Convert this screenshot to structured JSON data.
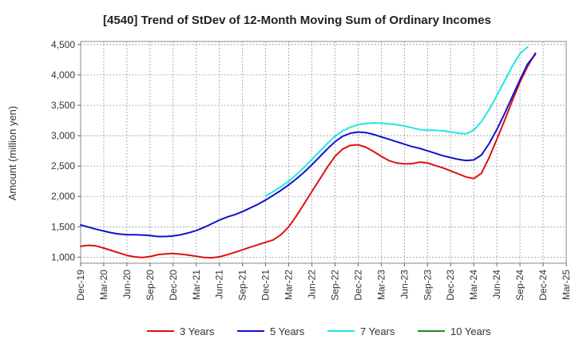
{
  "chart_data": {
    "type": "line",
    "title": "[4540]  Trend of StDev of 12-Month Moving Sum of Ordinary Incomes",
    "xlabel": "",
    "ylabel": "Amount (million yen)",
    "ylim": [
      900,
      4550
    ],
    "yticks": [
      1000,
      1500,
      2000,
      2500,
      3000,
      3500,
      4000,
      4500
    ],
    "ytick_labels": [
      "1,000",
      "1,500",
      "2,000",
      "2,500",
      "3,000",
      "3,500",
      "4,000",
      "4,500"
    ],
    "xlim": [
      "Dec-19",
      "Mar-25"
    ],
    "xtick_labels": [
      "Dec-19",
      "Mar-20",
      "Jun-20",
      "Sep-20",
      "Dec-20",
      "Mar-21",
      "Jun-21",
      "Sep-21",
      "Dec-21",
      "Mar-22",
      "Jun-22",
      "Sep-22",
      "Dec-22",
      "Mar-23",
      "Jun-23",
      "Sep-23",
      "Dec-23",
      "Mar-24",
      "Jun-24",
      "Sep-24",
      "Dec-24",
      "Mar-25"
    ],
    "grid": true,
    "legend_position": "bottom",
    "series": [
      {
        "name": "3 Years",
        "color": "#dd1111",
        "points": [
          [
            "Dec-19",
            1180
          ],
          [
            "Jan-20",
            1195
          ],
          [
            "Feb-20",
            1185
          ],
          [
            "Mar-20",
            1150
          ],
          [
            "Apr-20",
            1110
          ],
          [
            "May-20",
            1070
          ],
          [
            "Jun-20",
            1030
          ],
          [
            "Jul-20",
            1005
          ],
          [
            "Aug-20",
            995
          ],
          [
            "Sep-20",
            1010
          ],
          [
            "Oct-20",
            1040
          ],
          [
            "Nov-20",
            1055
          ],
          [
            "Dec-20",
            1060
          ],
          [
            "Jan-21",
            1050
          ],
          [
            "Feb-21",
            1035
          ],
          [
            "Mar-21",
            1015
          ],
          [
            "Apr-21",
            995
          ],
          [
            "May-21",
            990
          ],
          [
            "Jun-21",
            1005
          ],
          [
            "Jul-21",
            1040
          ],
          [
            "Aug-21",
            1080
          ],
          [
            "Sep-21",
            1120
          ],
          [
            "Oct-21",
            1165
          ],
          [
            "Nov-21",
            1205
          ],
          [
            "Dec-21",
            1245
          ],
          [
            "Jan-22",
            1285
          ],
          [
            "Feb-22",
            1370
          ],
          [
            "Mar-22",
            1500
          ],
          [
            "Apr-22",
            1680
          ],
          [
            "May-22",
            1880
          ],
          [
            "Jun-22",
            2080
          ],
          [
            "Jul-22",
            2280
          ],
          [
            "Aug-22",
            2480
          ],
          [
            "Sep-22",
            2660
          ],
          [
            "Oct-22",
            2780
          ],
          [
            "Nov-22",
            2840
          ],
          [
            "Dec-22",
            2850
          ],
          [
            "Jan-23",
            2810
          ],
          [
            "Feb-23",
            2740
          ],
          [
            "Mar-23",
            2660
          ],
          [
            "Apr-23",
            2590
          ],
          [
            "May-23",
            2550
          ],
          [
            "Jun-23",
            2535
          ],
          [
            "Jul-23",
            2540
          ],
          [
            "Aug-23",
            2565
          ],
          [
            "Sep-23",
            2550
          ],
          [
            "Oct-23",
            2510
          ],
          [
            "Nov-23",
            2470
          ],
          [
            "Dec-23",
            2420
          ],
          [
            "Jan-24",
            2370
          ],
          [
            "Feb-24",
            2320
          ],
          [
            "Mar-24",
            2295
          ],
          [
            "Apr-24",
            2380
          ],
          [
            "May-24",
            2640
          ],
          [
            "Jun-24",
            2940
          ],
          [
            "Jul-24",
            3250
          ],
          [
            "Aug-24",
            3570
          ],
          [
            "Sep-24",
            3880
          ],
          [
            "Oct-24",
            4140
          ],
          [
            "Nov-24",
            4360
          ]
        ]
      },
      {
        "name": "5 Years",
        "color": "#1111cc",
        "points": [
          [
            "Dec-19",
            1530
          ],
          [
            "Jan-20",
            1495
          ],
          [
            "Feb-20",
            1460
          ],
          [
            "Mar-20",
            1430
          ],
          [
            "Apr-20",
            1400
          ],
          [
            "May-20",
            1380
          ],
          [
            "Jun-20",
            1370
          ],
          [
            "Jul-20",
            1370
          ],
          [
            "Aug-20",
            1365
          ],
          [
            "Sep-20",
            1355
          ],
          [
            "Oct-20",
            1340
          ],
          [
            "Nov-20",
            1340
          ],
          [
            "Dec-20",
            1350
          ],
          [
            "Jan-21",
            1370
          ],
          [
            "Feb-21",
            1400
          ],
          [
            "Mar-21",
            1440
          ],
          [
            "Apr-21",
            1490
          ],
          [
            "May-21",
            1550
          ],
          [
            "Jun-21",
            1610
          ],
          [
            "Jul-21",
            1660
          ],
          [
            "Aug-21",
            1700
          ],
          [
            "Sep-21",
            1750
          ],
          [
            "Oct-21",
            1810
          ],
          [
            "Nov-21",
            1870
          ],
          [
            "Dec-21",
            1940
          ],
          [
            "Jan-22",
            2020
          ],
          [
            "Feb-22",
            2100
          ],
          [
            "Mar-22",
            2190
          ],
          [
            "Apr-22",
            2290
          ],
          [
            "May-22",
            2400
          ],
          [
            "Jun-22",
            2520
          ],
          [
            "Jul-22",
            2650
          ],
          [
            "Aug-22",
            2780
          ],
          [
            "Sep-22",
            2900
          ],
          [
            "Oct-22",
            2990
          ],
          [
            "Nov-22",
            3040
          ],
          [
            "Dec-22",
            3060
          ],
          [
            "Jan-23",
            3050
          ],
          [
            "Feb-23",
            3020
          ],
          [
            "Mar-23",
            2980
          ],
          [
            "Apr-23",
            2940
          ],
          [
            "May-23",
            2900
          ],
          [
            "Jun-23",
            2860
          ],
          [
            "Jul-23",
            2820
          ],
          [
            "Aug-23",
            2790
          ],
          [
            "Sep-23",
            2750
          ],
          [
            "Oct-23",
            2710
          ],
          [
            "Nov-23",
            2670
          ],
          [
            "Dec-23",
            2640
          ],
          [
            "Jan-24",
            2610
          ],
          [
            "Feb-24",
            2590
          ],
          [
            "Mar-24",
            2600
          ],
          [
            "Apr-24",
            2680
          ],
          [
            "May-24",
            2870
          ],
          [
            "Jun-24",
            3100
          ],
          [
            "Jul-24",
            3360
          ],
          [
            "Aug-24",
            3640
          ],
          [
            "Sep-24",
            3920
          ],
          [
            "Oct-24",
            4180
          ],
          [
            "Nov-24",
            4340
          ]
        ]
      },
      {
        "name": "7 Years",
        "color": "#22e6e6",
        "points": [
          [
            "Dec-21",
            2010
          ],
          [
            "Jan-22",
            2080
          ],
          [
            "Feb-22",
            2160
          ],
          [
            "Mar-22",
            2250
          ],
          [
            "Apr-22",
            2360
          ],
          [
            "May-22",
            2480
          ],
          [
            "Jun-22",
            2610
          ],
          [
            "Jul-22",
            2740
          ],
          [
            "Aug-22",
            2870
          ],
          [
            "Sep-22",
            2990
          ],
          [
            "Oct-22",
            3080
          ],
          [
            "Nov-22",
            3140
          ],
          [
            "Dec-22",
            3180
          ],
          [
            "Jan-23",
            3200
          ],
          [
            "Feb-23",
            3210
          ],
          [
            "Mar-23",
            3205
          ],
          [
            "Apr-23",
            3195
          ],
          [
            "May-23",
            3180
          ],
          [
            "Jun-23",
            3160
          ],
          [
            "Jul-23",
            3130
          ],
          [
            "Aug-23",
            3100
          ],
          [
            "Sep-23",
            3090
          ],
          [
            "Oct-23",
            3090
          ],
          [
            "Nov-23",
            3080
          ],
          [
            "Dec-23",
            3060
          ],
          [
            "Jan-24",
            3040
          ],
          [
            "Feb-24",
            3030
          ],
          [
            "Mar-24",
            3090
          ],
          [
            "Apr-24",
            3230
          ],
          [
            "May-24",
            3430
          ],
          [
            "Jun-24",
            3660
          ],
          [
            "Jul-24",
            3900
          ],
          [
            "Aug-24",
            4140
          ],
          [
            "Sep-24",
            4350
          ],
          [
            "Oct-24",
            4460
          ]
        ]
      },
      {
        "name": "10 Years",
        "color": "#228b22",
        "points": []
      }
    ]
  }
}
